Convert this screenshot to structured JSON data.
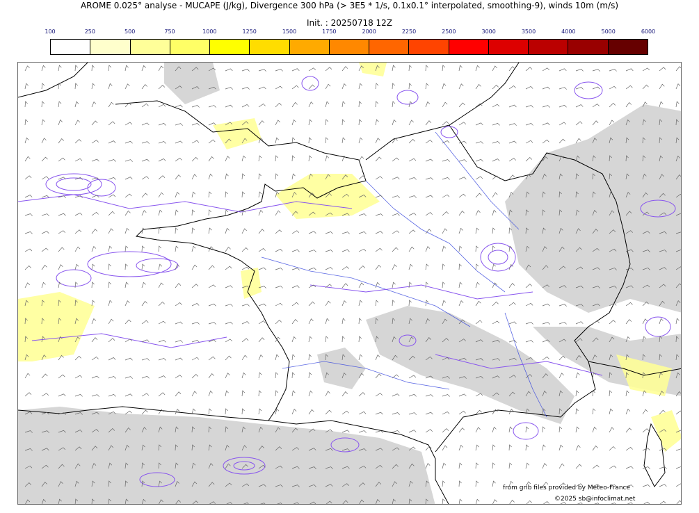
{
  "header": {
    "title": "AROME 0.025° analyse - MUCAPE (J/kg), Divergence 300 hPa (> 3E5 * 1/s, 0.1x0.1° interpolated, smoothing-9), winds 10m (m/s)",
    "init": "Init. : 20250718 12Z"
  },
  "colorbar": {
    "ticks": [
      "100",
      "250",
      "500",
      "750",
      "1000",
      "1250",
      "1500",
      "1750",
      "2000",
      "2250",
      "2500",
      "3000",
      "3500",
      "4000",
      "5000",
      "6000"
    ],
    "colors": [
      "#ffffff",
      "#ffffcc",
      "#ffff99",
      "#ffff66",
      "#ffff00",
      "#ffdd00",
      "#ffaa00",
      "#ff8800",
      "#ff6600",
      "#ff4400",
      "#ff0000",
      "#dd0000",
      "#bb0000",
      "#990000",
      "#660000"
    ]
  },
  "colors": {
    "divergence_contour": "#8855ee",
    "rivers": "#3344dd",
    "coast": "#000000",
    "cape_low": "#ffff99",
    "terrain_shade": "#cccccc"
  },
  "footer": {
    "source": "from grib files provided by Meteo-France",
    "copyright": "©2025 sb@infoclimat.net"
  }
}
